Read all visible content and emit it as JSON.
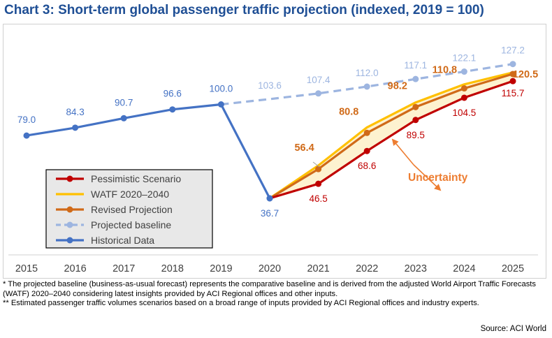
{
  "title": "Chart 3: Short-term global passenger traffic projection (indexed, 2019 = 100)",
  "chart_data": {
    "type": "line",
    "x": [
      "2015",
      "2016",
      "2017",
      "2018",
      "2019",
      "2020",
      "2021",
      "2022",
      "2023",
      "2024",
      "2025"
    ],
    "ylim": [
      20,
      135
    ],
    "grid": false,
    "legend_position": "bottom-left",
    "series": [
      {
        "name": "Historical Data",
        "color": "#4472c4",
        "style": "solid",
        "x": [
          "2015",
          "2016",
          "2017",
          "2018",
          "2019",
          "2020"
        ],
        "values": [
          79.0,
          84.3,
          90.7,
          96.6,
          100.0,
          36.7
        ],
        "labels": [
          "79.0",
          "84.3",
          "90.7",
          "96.6",
          "100.0",
          "36.7"
        ]
      },
      {
        "name": "Projected baseline",
        "color": "#9db5e0",
        "style": "dashed",
        "x": [
          "2019",
          "2020",
          "2021",
          "2022",
          "2023",
          "2024",
          "2025"
        ],
        "values": [
          100.0,
          103.6,
          107.4,
          112.0,
          117.1,
          122.1,
          127.2
        ],
        "labels": [
          "",
          "103.6",
          "107.4",
          "112.0",
          "117.1",
          "122.1",
          "127.2"
        ]
      },
      {
        "name": "Pessimistic Scenario",
        "color": "#c00000",
        "style": "solid",
        "x": [
          "2020",
          "2021",
          "2022",
          "2023",
          "2024",
          "2025"
        ],
        "values": [
          36.7,
          46.5,
          68.6,
          89.5,
          104.5,
          115.7
        ],
        "labels": [
          "",
          "46.5",
          "68.6",
          "89.5",
          "104.5",
          "115.7"
        ]
      },
      {
        "name": "WATF 2020–2040",
        "color": "#ffc000",
        "style": "solid",
        "x": [
          "2020",
          "2021",
          "2022",
          "2023",
          "2024",
          "2025"
        ],
        "values": [
          36.7,
          58.8,
          84.5,
          101.3,
          113.5,
          121.5
        ],
        "labels": [
          "",
          "",
          "",
          "",
          "",
          ""
        ]
      },
      {
        "name": "Revised Projection",
        "color": "#d06a18",
        "style": "solid",
        "x": [
          "2020",
          "2021",
          "2022",
          "2023",
          "2024",
          "2025"
        ],
        "values": [
          36.7,
          56.4,
          80.8,
          98.2,
          110.8,
          120.5
        ],
        "labels": [
          "",
          "56.4",
          "80.8",
          "98.2",
          "110.8",
          "120.5"
        ]
      }
    ],
    "legend_order": [
      "Pessimistic Scenario",
      "WATF 2020–2040",
      "Revised Projection",
      "Projected baseline",
      "Historical Data"
    ],
    "annotations": [
      {
        "text": "Uncertainty",
        "color": "#ed7d31"
      }
    ],
    "uncertainty_fill": "#fdf2d0"
  },
  "footnotes": [
    "* The projected baseline (business-as-usual forecast) represents the comparative baseline and is derived from the adjusted World Airport Traffic Forecasts (WATF) 2020–2040 considering latest insights provided by ACI Regional offices and other inputs.",
    "** Estimated passenger traffic volumes scenarios based on a broad range of inputs provided by ACI Regional offices and industry experts."
  ],
  "source": "Source: ACI World"
}
